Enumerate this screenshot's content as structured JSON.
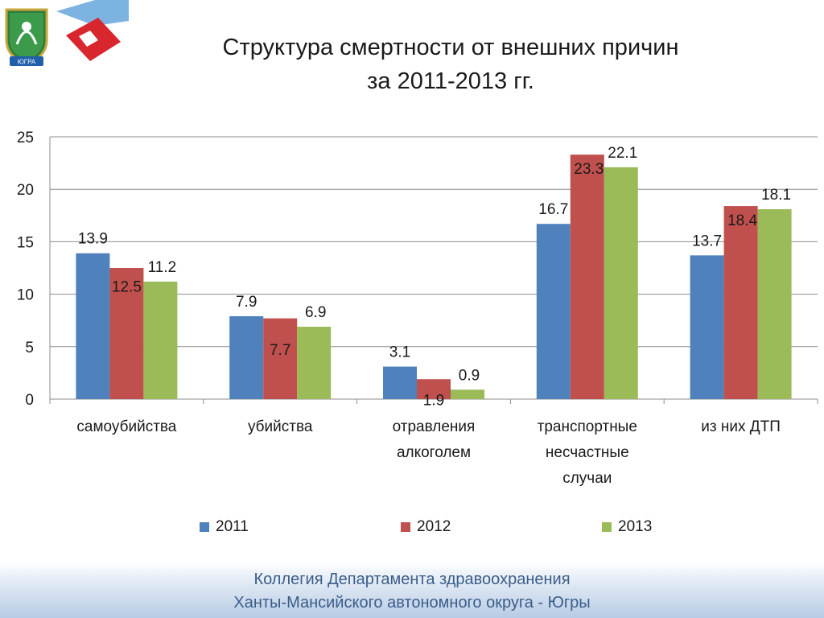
{
  "header": {
    "title_line1": "Структура смертности от  внешних причин",
    "title_line2": "за 2011-2013 гг.",
    "logo_icon": "coat-of-arms-icon",
    "flag_icon": "regional-flag-icon",
    "emblem_text": "ЮГРА"
  },
  "footer": {
    "line1": "Коллегия Департамента здравоохранения",
    "line2": "Ханты-Мансийского автономного округа - Югры"
  },
  "chart_data": {
    "type": "bar",
    "categories": [
      [
        "самоубийства"
      ],
      [
        "убийства"
      ],
      [
        "отравления",
        "алкоголем"
      ],
      [
        "транспортные",
        "несчастные",
        "случаи"
      ],
      [
        "из них ДТП"
      ]
    ],
    "series": [
      {
        "name": "2011",
        "color": "#4f81bd",
        "values": [
          13.9,
          7.9,
          3.1,
          16.7,
          13.7
        ]
      },
      {
        "name": "2012",
        "color": "#c0504d",
        "values": [
          12.5,
          7.7,
          1.9,
          23.3,
          18.4
        ]
      },
      {
        "name": "2013",
        "color": "#9bbb59",
        "values": [
          11.2,
          6.9,
          0.9,
          22.1,
          18.1
        ]
      }
    ],
    "data_labels": [
      [
        "13.9",
        "7.9",
        "3.1",
        "16.7",
        "13.7"
      ],
      [
        "12.5",
        "7.7",
        "1.9",
        "23.3",
        "18.4"
      ],
      [
        "11.2",
        "6.9",
        "0.9",
        "22.1",
        "18.1"
      ]
    ],
    "ylim": [
      0,
      25
    ],
    "yticks": [
      "0",
      "5",
      "10",
      "15",
      "20",
      "25"
    ],
    "grid": true,
    "legend_position": "bottom",
    "title": "",
    "xlabel": "",
    "ylabel": ""
  }
}
